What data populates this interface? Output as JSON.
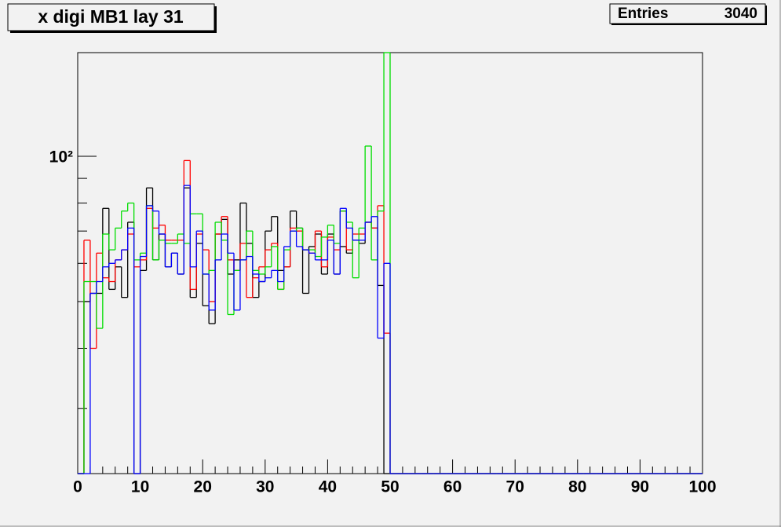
{
  "chart_data": {
    "type": "histogram",
    "title": "x digi MB1 lay 31",
    "stats": {
      "label": "Entries",
      "value": 3040
    },
    "log_y": true,
    "xlim": [
      0,
      100
    ],
    "ylim": [
      22,
      164
    ],
    "xticks": [
      0,
      10,
      20,
      30,
      40,
      50,
      60,
      70,
      80,
      90,
      100
    ],
    "xminorticks": [
      2,
      4,
      6,
      8,
      12,
      14,
      16,
      18,
      22,
      24,
      26,
      28,
      32,
      34,
      36,
      38,
      42,
      44,
      46,
      48,
      52,
      54,
      56,
      58,
      62,
      64,
      66,
      68,
      72,
      74,
      76,
      78,
      82,
      84,
      86,
      88,
      92,
      94,
      96,
      98
    ],
    "yticks": [
      {
        "value": 100,
        "label": "10²"
      }
    ],
    "yminorticks": [
      30,
      40,
      50,
      60,
      70,
      80,
      90
    ],
    "bins": [
      0,
      1,
      2,
      3,
      4,
      5,
      6,
      7,
      8,
      9,
      10,
      11,
      12,
      13,
      14,
      15,
      16,
      17,
      18,
      19,
      20,
      21,
      22,
      23,
      24,
      25,
      26,
      27,
      28,
      29,
      30,
      31,
      32,
      33,
      34,
      35,
      36,
      37,
      38,
      39,
      40,
      41,
      42,
      43,
      44,
      45,
      46,
      47,
      48,
      49,
      50,
      51,
      52,
      53,
      54,
      55,
      56,
      57,
      58,
      59,
      60,
      61,
      62,
      63,
      64,
      65,
      66,
      67,
      68,
      69,
      70,
      71,
      72,
      73,
      74,
      75,
      76,
      77,
      78,
      79,
      80,
      81,
      82,
      83,
      84,
      85,
      86,
      87,
      88,
      89,
      90,
      91,
      92,
      93,
      94,
      95,
      96,
      97,
      98,
      99,
      100
    ],
    "series": [
      {
        "color": "#000000",
        "values": [
          0,
          50,
          52,
          52,
          78,
          53,
          59,
          51,
          73,
          0,
          58,
          86,
          61,
          69,
          59,
          63,
          57,
          86,
          51,
          66,
          49,
          45,
          69,
          74,
          57,
          61,
          80,
          66,
          51,
          55,
          70,
          75,
          58,
          59,
          77,
          71,
          52,
          65,
          69,
          57,
          69,
          57,
          65,
          63,
          67,
          66,
          73,
          71,
          54,
          0,
          0,
          0,
          0,
          0,
          0,
          0,
          0,
          0,
          0,
          0,
          0,
          0,
          0,
          0,
          0,
          0,
          0,
          0,
          0,
          0,
          0,
          0,
          0,
          0,
          0,
          0,
          0,
          0,
          0,
          0,
          0,
          0,
          0,
          0,
          0,
          0,
          0,
          0,
          0,
          0,
          0,
          0,
          0,
          0,
          0,
          0,
          0,
          0,
          0,
          0
        ]
      },
      {
        "color": "#ff0000",
        "values": [
          0,
          67,
          40,
          63,
          56,
          55,
          61,
          64,
          69,
          59,
          61,
          78,
          71,
          72,
          67,
          67,
          67,
          98,
          53,
          69,
          64,
          50,
          69,
          75,
          61,
          58,
          66,
          51,
          56,
          59,
          64,
          66,
          53,
          59,
          71,
          70,
          64,
          63,
          70,
          59,
          68,
          64,
          77,
          64,
          69,
          69,
          73,
          71,
          79,
          43,
          0,
          0,
          0,
          0,
          0,
          0,
          0,
          0,
          0,
          0,
          0,
          0,
          0,
          0,
          0,
          0,
          0,
          0,
          0,
          0,
          0,
          0,
          0,
          0,
          0,
          0,
          0,
          0,
          0,
          0,
          0,
          0,
          0,
          0,
          0,
          0,
          0,
          0,
          0,
          0,
          0,
          0,
          0,
          0,
          0,
          0,
          0,
          0,
          0,
          0
        ]
      },
      {
        "color": "#00dd00",
        "values": [
          0,
          55,
          55,
          44,
          69,
          64,
          71,
          77,
          80,
          61,
          63,
          79,
          61,
          67,
          66,
          66,
          69,
          66,
          76,
          76,
          57,
          58,
          73,
          67,
          47,
          58,
          61,
          70,
          58,
          57,
          59,
          65,
          53,
          64,
          70,
          71,
          64,
          64,
          62,
          68,
          72,
          66,
          77,
          73,
          56,
          71,
          105,
          61,
          77,
          170,
          0,
          0,
          0,
          0,
          0,
          0,
          0,
          0,
          0,
          0,
          0,
          0,
          0,
          0,
          0,
          0,
          0,
          0,
          0,
          0,
          0,
          0,
          0,
          0,
          0,
          0,
          0,
          0,
          0,
          0,
          0,
          0,
          0,
          0,
          0,
          0,
          0,
          0,
          0,
          0,
          0,
          0,
          0,
          0,
          0,
          0,
          0,
          0,
          0,
          0
        ]
      },
      {
        "color": "#0000ff",
        "values": [
          0,
          0,
          52,
          55,
          59,
          60,
          61,
          64,
          71,
          0,
          62,
          79,
          77,
          69,
          59,
          63,
          57,
          87,
          59,
          70,
          57,
          48,
          61,
          69,
          63,
          48,
          61,
          62,
          57,
          55,
          56,
          58,
          55,
          65,
          70,
          65,
          64,
          63,
          61,
          61,
          67,
          57,
          78,
          71,
          67,
          67,
          73,
          75,
          42,
          60,
          0,
          0,
          0,
          0,
          0,
          0,
          0,
          0,
          0,
          0,
          0,
          0,
          0,
          0,
          0,
          0,
          0,
          0,
          0,
          0,
          0,
          0,
          0,
          0,
          0,
          0,
          0,
          0,
          0,
          0,
          0,
          0,
          0,
          0,
          0,
          0,
          0,
          0,
          0,
          0,
          0,
          0,
          0,
          0,
          0,
          0,
          0,
          0,
          0,
          0
        ]
      }
    ]
  }
}
